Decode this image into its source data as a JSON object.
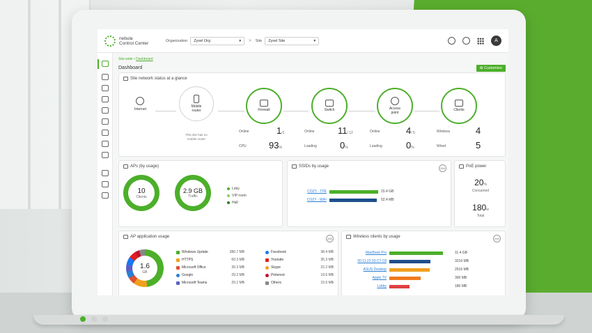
{
  "header": {
    "logo_line1": "nebula",
    "logo_line2": "Control Center",
    "org_label": "Organization",
    "org_value": "Zyxel Org",
    "site_label": "Site",
    "site_value": "Zyxel Site",
    "avatar_initial": "A",
    "separator": ">"
  },
  "breadcrumb": {
    "root": "Site-wide",
    "sep": " • ",
    "current": "Dashboard"
  },
  "page": {
    "title": "Dashboard",
    "customize_label": "Customize"
  },
  "site_status": {
    "title": "Site network status at a glance",
    "nodes": [
      {
        "label": "Internet",
        "icon": "globe-icon"
      },
      {
        "label": "Mobile\nrouter",
        "icon": "phone-icon"
      },
      {
        "label": "Firewall",
        "icon": "shield-icon"
      },
      {
        "label": "Switch",
        "icon": "switch-icon"
      },
      {
        "label": "Access\npoint",
        "icon": "access-point-icon"
      },
      {
        "label": "Clients",
        "icon": "monitor-icon"
      }
    ],
    "mobile_note": "This site has no\nmobile router",
    "firewall": {
      "online_label": "Online",
      "online": "1",
      "online_total": "/1",
      "cpu_label": "CPU",
      "cpu": "93",
      "cpu_unit": "%"
    },
    "switch": {
      "online_label": "Online",
      "online": "11",
      "online_total": "/ 12",
      "loading_label": "Loading",
      "loading": "0",
      "loading_unit": "%"
    },
    "ap": {
      "online_label": "Online",
      "online": "4",
      "online_total": "/ 5",
      "loading_label": "Loading",
      "loading": "0",
      "loading_unit": "%"
    },
    "clients": {
      "wireless_label": "Wireless",
      "wireless": "4",
      "wired_label": "Wired",
      "wired": "5"
    }
  },
  "aps_usage": {
    "title": "APs (by usage)",
    "clients_value": "10",
    "clients_label": "Clients",
    "traffic_value": "2.9 GB",
    "traffic_label": "Traffic",
    "legend": [
      "Loby",
      "VIP room",
      "Hall"
    ]
  },
  "ssids_usage": {
    "title": "SSIDs by usage",
    "badge": "24h",
    "rows": [
      {
        "name": "COZY - TPE",
        "value": "15.4 GB",
        "fraction": 1.0,
        "color": "#4caf2a"
      },
      {
        "name": "COZY - WiFi",
        "value": "52.4 MB",
        "fraction": 0.97,
        "color": "#1e4e8c"
      }
    ]
  },
  "poe": {
    "title": "PoE power",
    "consumed_value": "20",
    "consumed_unit": "%",
    "consumed_label": "Consumed",
    "total_value": "180",
    "total_unit": "w",
    "total_label": "Total"
  },
  "ap_app_usage": {
    "title": "AP application usage",
    "badge": "24h",
    "donut_value": "1.6",
    "donut_unit": "GB",
    "col1": [
      {
        "name": "Windows Update",
        "value": "280.7 MB",
        "color": "#4caf2a"
      },
      {
        "name": "HTTPS",
        "value": "60.3 MB",
        "color": "#f0a020"
      },
      {
        "name": "Microsoft Office",
        "value": "30.3 MB",
        "color": "#e05030"
      },
      {
        "name": "Google",
        "value": "29.2 MB",
        "color": "#2a7fd4"
      },
      {
        "name": "Microsoft Teams",
        "value": "29.1 MB",
        "color": "#5b5fc7"
      }
    ],
    "col2": [
      {
        "name": "Facebook",
        "value": "38.4 MB",
        "color": "#1877f2"
      },
      {
        "name": "Youtube",
        "value": "35.3 MB",
        "color": "#e02020"
      },
      {
        "name": "Skype",
        "value": "22.2 MB",
        "color": "#f0a020"
      },
      {
        "name": "Pinterest",
        "value": "19.6 MB",
        "color": "#c8102e"
      },
      {
        "name": "Others",
        "value": "15.5 MB",
        "color": "#888888"
      }
    ]
  },
  "wireless_clients": {
    "title": "Wireless clients by usage",
    "badge": "24h",
    "rows": [
      {
        "name": "MacBook Pro",
        "value": "11.4 GB",
        "fraction": 0.86,
        "color": "#4caf2a"
      },
      {
        "name": "00:11:22:33:C7:C8",
        "value": "3216 MB",
        "fraction": 0.66,
        "color": "#1e4e8c"
      },
      {
        "name": "ASUS Desktop",
        "value": "2516 MB",
        "fraction": 0.64,
        "color": "#f0a020"
      },
      {
        "name": "Apple TV",
        "value": "300 MB",
        "fraction": 0.5,
        "color": "#f07a20"
      },
      {
        "name": "Lobby",
        "value": "180 MB",
        "fraction": 0.32,
        "color": "#e04040"
      }
    ]
  }
}
